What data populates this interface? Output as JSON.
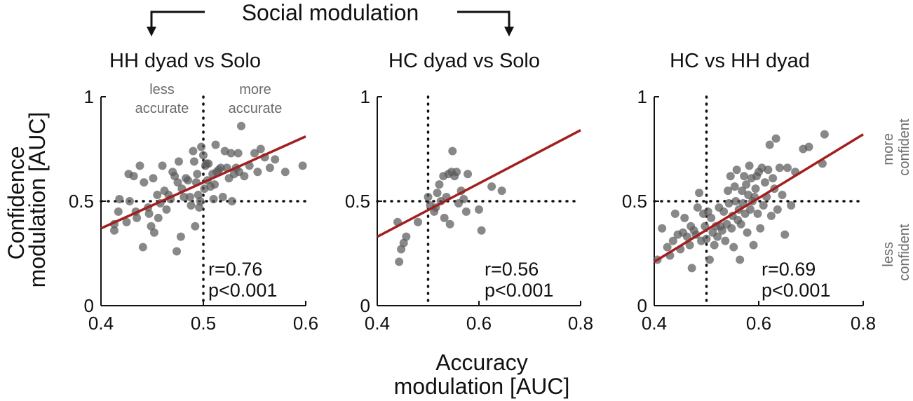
{
  "figure": {
    "header": "Social modulation",
    "ylabel_lines": [
      "Confidence",
      "modulation [AUC]"
    ],
    "xlabel_lines": [
      "Accuracy",
      "modulation [AUC]"
    ],
    "quadrant_left": [
      "less",
      "accurate"
    ],
    "quadrant_right": [
      "more",
      "accurate"
    ],
    "side_upper": [
      "more",
      "confident"
    ],
    "side_lower": [
      "less",
      "confident"
    ],
    "colors": {
      "points": "#5a5a5a",
      "fit": "#a31f1f",
      "ref_lines": "#111111"
    }
  },
  "chart_data": [
    {
      "type": "scatter",
      "title": "HH dyad vs Solo",
      "xlim": [
        0.4,
        0.6
      ],
      "ylim": [
        0,
        1
      ],
      "xticks": [
        "0.4",
        "0.5",
        "0.6"
      ],
      "yticks": [
        "0",
        "0.5",
        "1"
      ],
      "ref_x": 0.5,
      "ref_y": 0.5,
      "stat_r": "r=0.76",
      "stat_p": "p<0.001",
      "fit": {
        "x": [
          0.4,
          0.6
        ],
        "y": [
          0.37,
          0.81
        ]
      },
      "points": [
        [
          0.413,
          0.36
        ],
        [
          0.413,
          0.39
        ],
        [
          0.417,
          0.45
        ],
        [
          0.418,
          0.51
        ],
        [
          0.425,
          0.4
        ],
        [
          0.427,
          0.63
        ],
        [
          0.428,
          0.5
        ],
        [
          0.432,
          0.62
        ],
        [
          0.434,
          0.45
        ],
        [
          0.435,
          0.42
        ],
        [
          0.438,
          0.67
        ],
        [
          0.441,
          0.28
        ],
        [
          0.442,
          0.59
        ],
        [
          0.446,
          0.47
        ],
        [
          0.447,
          0.44
        ],
        [
          0.449,
          0.38
        ],
        [
          0.451,
          0.61
        ],
        [
          0.452,
          0.35
        ],
        [
          0.455,
          0.53
        ],
        [
          0.456,
          0.42
        ],
        [
          0.458,
          0.49
        ],
        [
          0.46,
          0.67
        ],
        [
          0.462,
          0.55
        ],
        [
          0.464,
          0.46
        ],
        [
          0.466,
          0.53
        ],
        [
          0.468,
          0.51
        ],
        [
          0.47,
          0.64
        ],
        [
          0.472,
          0.62
        ],
        [
          0.474,
          0.26
        ],
        [
          0.475,
          0.59
        ],
        [
          0.476,
          0.69
        ],
        [
          0.478,
          0.33
        ],
        [
          0.479,
          0.56
        ],
        [
          0.481,
          0.52
        ],
        [
          0.483,
          0.61
        ],
        [
          0.485,
          0.6
        ],
        [
          0.487,
          0.52
        ],
        [
          0.488,
          0.48
        ],
        [
          0.49,
          0.74
        ],
        [
          0.491,
          0.69
        ],
        [
          0.492,
          0.38
        ],
        [
          0.493,
          0.59
        ],
        [
          0.494,
          0.63
        ],
        [
          0.495,
          0.53
        ],
        [
          0.496,
          0.47
        ],
        [
          0.497,
          0.5
        ],
        [
          0.498,
          0.76
        ],
        [
          0.5,
          0.72
        ],
        [
          0.501,
          0.56
        ],
        [
          0.502,
          0.67
        ],
        [
          0.503,
          0.68
        ],
        [
          0.504,
          0.6
        ],
        [
          0.505,
          0.68
        ],
        [
          0.507,
          0.57
        ],
        [
          0.509,
          0.63
        ],
        [
          0.51,
          0.51
        ],
        [
          0.511,
          0.58
        ],
        [
          0.512,
          0.77
        ],
        [
          0.513,
          0.64
        ],
        [
          0.515,
          0.65
        ],
        [
          0.517,
          0.66
        ],
        [
          0.519,
          0.52
        ],
        [
          0.521,
          0.74
        ],
        [
          0.523,
          0.66
        ],
        [
          0.525,
          0.61
        ],
        [
          0.527,
          0.73
        ],
        [
          0.528,
          0.5
        ],
        [
          0.53,
          0.63
        ],
        [
          0.532,
          0.66
        ],
        [
          0.534,
          0.73
        ],
        [
          0.535,
          0.64
        ],
        [
          0.537,
          0.86
        ],
        [
          0.54,
          0.62
        ],
        [
          0.545,
          0.67
        ],
        [
          0.55,
          0.73
        ],
        [
          0.553,
          0.64
        ],
        [
          0.556,
          0.75
        ],
        [
          0.56,
          0.71
        ],
        [
          0.565,
          0.66
        ],
        [
          0.57,
          0.7
        ],
        [
          0.58,
          0.64
        ],
        [
          0.597,
          0.67
        ]
      ]
    },
    {
      "type": "scatter",
      "title": "HC dyad vs Solo",
      "xlim": [
        0.4,
        0.8
      ],
      "ylim": [
        0,
        1
      ],
      "xticks": [
        "0.4",
        "0.6",
        "0.8"
      ],
      "yticks": [
        "0",
        "0.5",
        "1"
      ],
      "ref_x": 0.5,
      "ref_y": 0.5,
      "stat_r": "r=0.56",
      "stat_p": "p<0.001",
      "fit": {
        "x": [
          0.4,
          0.8
        ],
        "y": [
          0.33,
          0.84
        ]
      },
      "points": [
        [
          0.44,
          0.4
        ],
        [
          0.443,
          0.21
        ],
        [
          0.447,
          0.27
        ],
        [
          0.452,
          0.3
        ],
        [
          0.457,
          0.33
        ],
        [
          0.48,
          0.4
        ],
        [
          0.5,
          0.52
        ],
        [
          0.504,
          0.48
        ],
        [
          0.512,
          0.45
        ],
        [
          0.515,
          0.47
        ],
        [
          0.518,
          0.54
        ],
        [
          0.522,
          0.58
        ],
        [
          0.525,
          0.5
        ],
        [
          0.53,
          0.62
        ],
        [
          0.532,
          0.42
        ],
        [
          0.536,
          0.52
        ],
        [
          0.54,
          0.63
        ],
        [
          0.543,
          0.39
        ],
        [
          0.546,
          0.64
        ],
        [
          0.548,
          0.74
        ],
        [
          0.552,
          0.62
        ],
        [
          0.556,
          0.64
        ],
        [
          0.56,
          0.49
        ],
        [
          0.565,
          0.55
        ],
        [
          0.57,
          0.51
        ],
        [
          0.575,
          0.45
        ],
        [
          0.578,
          0.63
        ],
        [
          0.6,
          0.46
        ],
        [
          0.605,
          0.36
        ],
        [
          0.625,
          0.57
        ],
        [
          0.645,
          0.55
        ]
      ]
    },
    {
      "type": "scatter",
      "title": "HC vs HH dyad",
      "xlim": [
        0.4,
        0.8
      ],
      "ylim": [
        0,
        1
      ],
      "xticks": [
        "0.4",
        "0.6",
        "0.8"
      ],
      "yticks": [
        "0",
        "0.5",
        "1"
      ],
      "ref_x": 0.5,
      "ref_y": 0.5,
      "stat_r": "r=0.69",
      "stat_p": "p<0.001",
      "fit": {
        "x": [
          0.4,
          0.8
        ],
        "y": [
          0.21,
          0.82
        ]
      },
      "points": [
        [
          0.406,
          0.22
        ],
        [
          0.415,
          0.37
        ],
        [
          0.425,
          0.28
        ],
        [
          0.43,
          0.24
        ],
        [
          0.436,
          0.31
        ],
        [
          0.44,
          0.44
        ],
        [
          0.445,
          0.34
        ],
        [
          0.45,
          0.27
        ],
        [
          0.455,
          0.35
        ],
        [
          0.458,
          0.42
        ],
        [
          0.463,
          0.33
        ],
        [
          0.468,
          0.29
        ],
        [
          0.47,
          0.38
        ],
        [
          0.472,
          0.18
        ],
        [
          0.476,
          0.36
        ],
        [
          0.48,
          0.34
        ],
        [
          0.483,
          0.47
        ],
        [
          0.486,
          0.54
        ],
        [
          0.49,
          0.31
        ],
        [
          0.494,
          0.44
        ],
        [
          0.497,
          0.38
        ],
        [
          0.5,
          0.32
        ],
        [
          0.503,
          0.45
        ],
        [
          0.506,
          0.22
        ],
        [
          0.509,
          0.42
        ],
        [
          0.512,
          0.35
        ],
        [
          0.515,
          0.29
        ],
        [
          0.518,
          0.38
        ],
        [
          0.521,
          0.33
        ],
        [
          0.524,
          0.47
        ],
        [
          0.527,
          0.38
        ],
        [
          0.53,
          0.36
        ],
        [
          0.533,
          0.45
        ],
        [
          0.536,
          0.31
        ],
        [
          0.539,
          0.39
        ],
        [
          0.541,
          0.55
        ],
        [
          0.543,
          0.49
        ],
        [
          0.546,
          0.62
        ],
        [
          0.548,
          0.37
        ],
        [
          0.55,
          0.43
        ],
        [
          0.552,
          0.28
        ],
        [
          0.554,
          0.57
        ],
        [
          0.556,
          0.5
        ],
        [
          0.558,
          0.65
        ],
        [
          0.56,
          0.41
        ],
        [
          0.562,
          0.46
        ],
        [
          0.564,
          0.22
        ],
        [
          0.566,
          0.39
        ],
        [
          0.568,
          0.55
        ],
        [
          0.57,
          0.49
        ],
        [
          0.572,
          0.62
        ],
        [
          0.574,
          0.44
        ],
        [
          0.576,
          0.58
        ],
        [
          0.578,
          0.35
        ],
        [
          0.58,
          0.53
        ],
        [
          0.582,
          0.67
        ],
        [
          0.584,
          0.46
        ],
        [
          0.586,
          0.61
        ],
        [
          0.588,
          0.5
        ],
        [
          0.59,
          0.29
        ],
        [
          0.592,
          0.52
        ],
        [
          0.594,
          0.56
        ],
        [
          0.596,
          0.62
        ],
        [
          0.598,
          0.44
        ],
        [
          0.6,
          0.64
        ],
        [
          0.603,
          0.37
        ],
        [
          0.606,
          0.66
        ],
        [
          0.609,
          0.48
        ],
        [
          0.612,
          0.59
        ],
        [
          0.615,
          0.52
        ],
        [
          0.618,
          0.65
        ],
        [
          0.621,
          0.77
        ],
        [
          0.624,
          0.43
        ],
        [
          0.627,
          0.61
        ],
        [
          0.63,
          0.56
        ],
        [
          0.633,
          0.8
        ],
        [
          0.636,
          0.46
        ],
        [
          0.64,
          0.66
        ],
        [
          0.645,
          0.53
        ],
        [
          0.65,
          0.34
        ],
        [
          0.655,
          0.66
        ],
        [
          0.662,
          0.48
        ],
        [
          0.67,
          0.64
        ],
        [
          0.685,
          0.75
        ],
        [
          0.696,
          0.76
        ],
        [
          0.722,
          0.68
        ],
        [
          0.726,
          0.82
        ]
      ]
    }
  ]
}
